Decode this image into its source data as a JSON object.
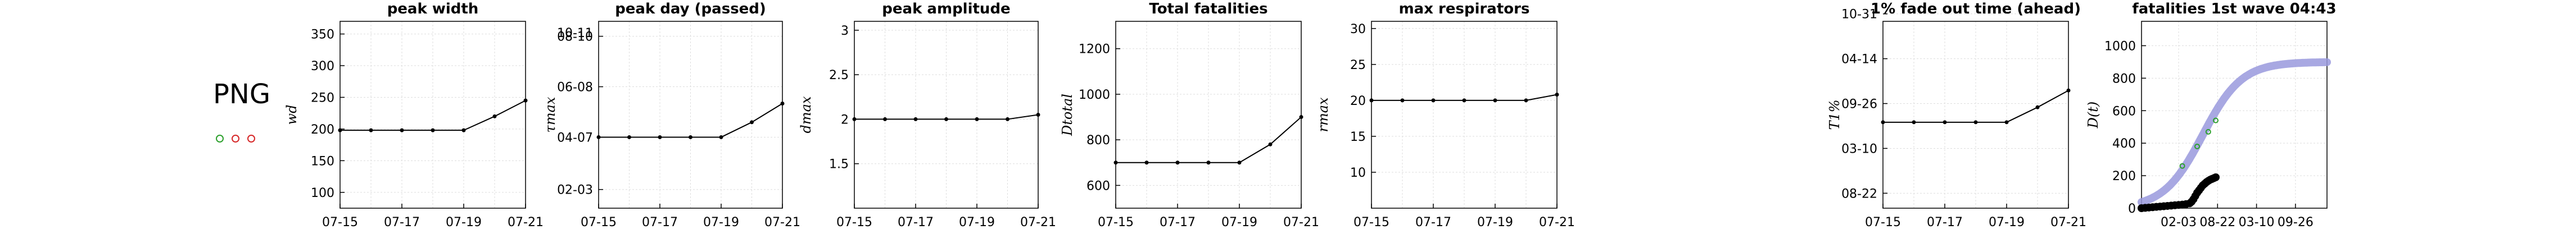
{
  "country": "PNG",
  "status_dots": [
    {
      "color": "#2ca02c"
    },
    {
      "color": "#d62728"
    },
    {
      "color": "#d62728"
    }
  ],
  "colors": {
    "axis": "#000000",
    "grid": "#dddddd",
    "line": "#000000",
    "model": "#9999dd",
    "fit": "#2ca02c"
  },
  "chart_data": [
    {
      "type": "line",
      "title": "peak width",
      "ylabel": "w_d",
      "ylabel_display": "wd",
      "xlim": [
        "07-15",
        "07-21"
      ],
      "ylim": [
        75,
        370
      ],
      "xticks": [
        "07-15",
        "07-17",
        "07-19",
        "07-21"
      ],
      "yticks": [
        100,
        150,
        200,
        250,
        300,
        350
      ],
      "ytick_labels": [
        "100",
        "150",
        "200",
        "250",
        "300",
        "350"
      ],
      "x": [
        0,
        1,
        2,
        3,
        4,
        5,
        6
      ],
      "values": [
        198,
        198,
        198,
        198,
        198,
        220,
        245
      ],
      "grid": true
    },
    {
      "type": "line",
      "title": "peak day (passed)",
      "ylabel": "τ_max",
      "ylabel_display": "τmax",
      "xlim": [
        "07-15",
        "07-21"
      ],
      "ylim": [
        0,
        10
      ],
      "xticks": [
        "07-15",
        "07-17",
        "07-19",
        "07-21"
      ],
      "yticks": [
        1.0,
        3.8,
        6.5,
        9.2
      ],
      "ytick_labels": [
        "02-03",
        "04-07",
        "06-08",
        "08-10"
      ],
      "x": [
        0,
        1,
        2,
        3,
        4,
        5,
        6
      ],
      "values": [
        3.8,
        3.8,
        3.8,
        3.8,
        3.8,
        4.6,
        5.6
      ],
      "extra_yticks": [
        {
          "v": 10.5,
          "label": "10-11"
        }
      ],
      "grid": true
    },
    {
      "type": "line",
      "title": "peak amplitude",
      "ylabel": "d_max",
      "ylabel_display": "dmax",
      "xlim": [
        "07-15",
        "07-21"
      ],
      "ylim": [
        1.0,
        3.1
      ],
      "xticks": [
        "07-15",
        "07-17",
        "07-19",
        "07-21"
      ],
      "yticks": [
        1.5,
        2.0,
        2.5,
        3.0
      ],
      "ytick_labels": [
        "1.5",
        "2",
        "2.5",
        "3"
      ],
      "x": [
        0,
        1,
        2,
        3,
        4,
        5,
        6
      ],
      "values": [
        2.0,
        2.0,
        2.0,
        2.0,
        2.0,
        2.0,
        2.05
      ],
      "grid": true
    },
    {
      "type": "line",
      "title": "Total fatalities",
      "ylabel": "D_total",
      "ylabel_display": "Dtotal",
      "xlim": [
        "07-15",
        "07-21"
      ],
      "ylim": [
        500,
        1320
      ],
      "xticks": [
        "07-15",
        "07-17",
        "07-19",
        "07-21"
      ],
      "yticks": [
        600,
        800,
        1000,
        1200
      ],
      "ytick_labels": [
        "600",
        "800",
        "1000",
        "1200"
      ],
      "x": [
        0,
        1,
        2,
        3,
        4,
        5,
        6
      ],
      "values": [
        700,
        700,
        700,
        700,
        700,
        780,
        900
      ],
      "grid": true
    },
    {
      "type": "line",
      "title": "max respirators",
      "ylabel": "r_max",
      "ylabel_display": "rmax",
      "xlim": [
        "07-15",
        "07-21"
      ],
      "ylim": [
        5,
        31
      ],
      "xticks": [
        "07-15",
        "07-17",
        "07-19",
        "07-21"
      ],
      "yticks": [
        10,
        15,
        20,
        25,
        30
      ],
      "ytick_labels": [
        "10",
        "15",
        "20",
        "25",
        "30"
      ],
      "x": [
        0,
        1,
        2,
        3,
        4,
        5,
        6
      ],
      "values": [
        20,
        20,
        20,
        20,
        20,
        20,
        20.8
      ],
      "grid": true
    },
    {
      "type": "line",
      "title": "1% fade out time (ahead)",
      "ylabel": "T_1%",
      "ylabel_display": "T1%",
      "xlim": [
        "07-15",
        "07-21"
      ],
      "ylim": [
        0,
        10
      ],
      "xticks": [
        "07-15",
        "07-17",
        "07-19",
        "07-21"
      ],
      "yticks": [
        0.8,
        3.2,
        5.6,
        8.0,
        10.4
      ],
      "ytick_labels": [
        "08-22",
        "03-10",
        "09-26",
        "04-14",
        "10-31"
      ],
      "x": [
        0,
        1,
        2,
        3,
        4,
        5,
        6
      ],
      "values": [
        4.6,
        4.6,
        4.6,
        4.6,
        4.6,
        5.4,
        6.3
      ],
      "grid": true
    },
    {
      "type": "scatter",
      "title": "fatalities 1st wave 04:43",
      "ylabel": "D(t)",
      "xlim": [
        0,
        10
      ],
      "ylim": [
        0,
        1150
      ],
      "xticks": [
        2.0,
        4.1,
        6.2,
        8.3
      ],
      "xtick_labels": [
        "02-03",
        "08-22",
        "03-10",
        "09-26"
      ],
      "yticks": [
        0,
        200,
        400,
        600,
        800,
        1000
      ],
      "ytick_labels": [
        "0",
        "200",
        "400",
        "600",
        "800",
        "1000"
      ],
      "model_curve": {
        "max": 900,
        "mid": 3.3,
        "k": 0.95
      },
      "observed": {
        "x": [
          0,
          0.2,
          0.4,
          0.6,
          0.8,
          1.0,
          1.2,
          1.4,
          1.6,
          1.8,
          2.0,
          2.2,
          2.4,
          2.6,
          2.7,
          2.8,
          2.9,
          3.0,
          3.1,
          3.2,
          3.3,
          3.4,
          3.5,
          3.6,
          3.7,
          3.8,
          3.9,
          4.0
        ],
        "y": [
          0,
          2,
          4,
          6,
          8,
          10,
          12,
          14,
          16,
          18,
          20,
          22,
          25,
          30,
          40,
          55,
          75,
          95,
          110,
          125,
          140,
          150,
          160,
          168,
          175,
          180,
          185,
          190
        ]
      },
      "fit_points": {
        "x": [
          2.2,
          3.0,
          3.6,
          4.0
        ],
        "y": [
          260,
          380,
          470,
          540
        ]
      },
      "grid": true
    }
  ]
}
